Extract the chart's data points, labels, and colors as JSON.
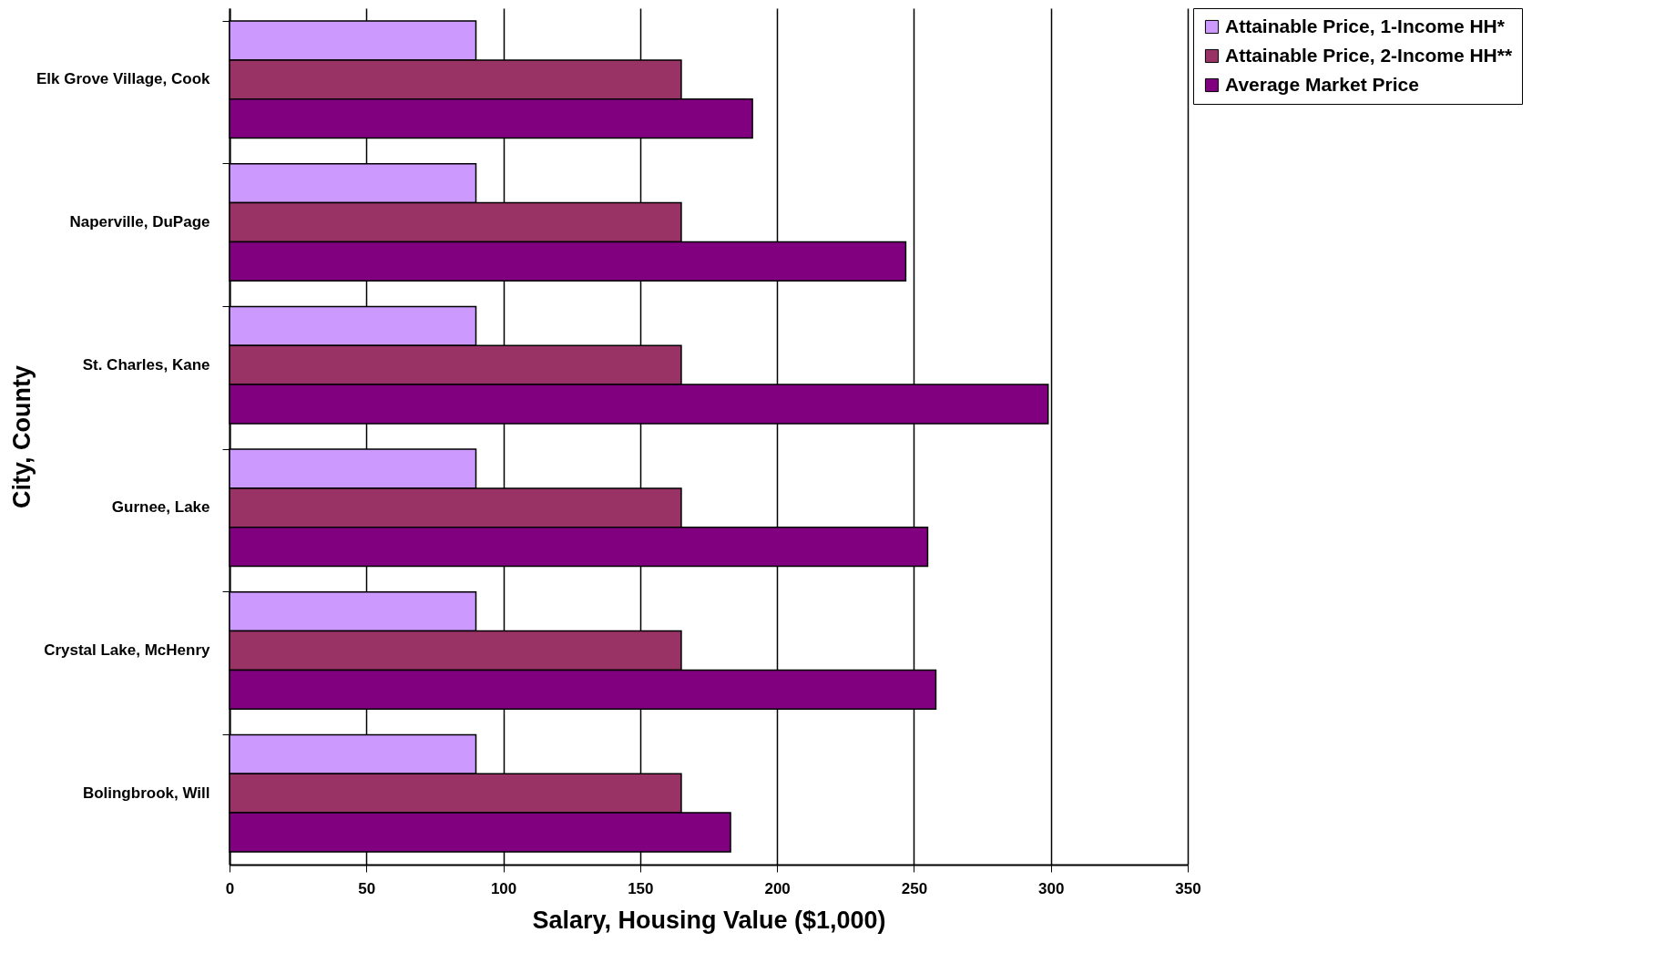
{
  "chart_data": {
    "type": "bar",
    "orientation": "horizontal",
    "xlabel": "Salary, Housing Value ($1,000)",
    "ylabel": "City, County",
    "categories": [
      "Elk Grove Village, Cook",
      "Naperville, DuPage",
      "St. Charles, Kane",
      "Gurnee, Lake",
      "Crystal Lake, McHenry",
      "Bolingbrook, Will"
    ],
    "series": [
      {
        "name": "Attainable Price, 1-Income HH*",
        "color": "#cc99ff",
        "values": [
          90,
          90,
          90,
          90,
          90,
          90
        ]
      },
      {
        "name": "Attainable Price, 2-Income HH**",
        "color": "#993366",
        "values": [
          165,
          165,
          165,
          165,
          165,
          165
        ]
      },
      {
        "name": "Average Market Price",
        "color": "#800080",
        "values": [
          191,
          247,
          299,
          255,
          258,
          183
        ]
      }
    ],
    "xlim": [
      0,
      350
    ],
    "xticks": [
      0,
      50,
      100,
      150,
      200,
      250,
      300,
      350
    ],
    "grid": "x",
    "legend": "right"
  }
}
